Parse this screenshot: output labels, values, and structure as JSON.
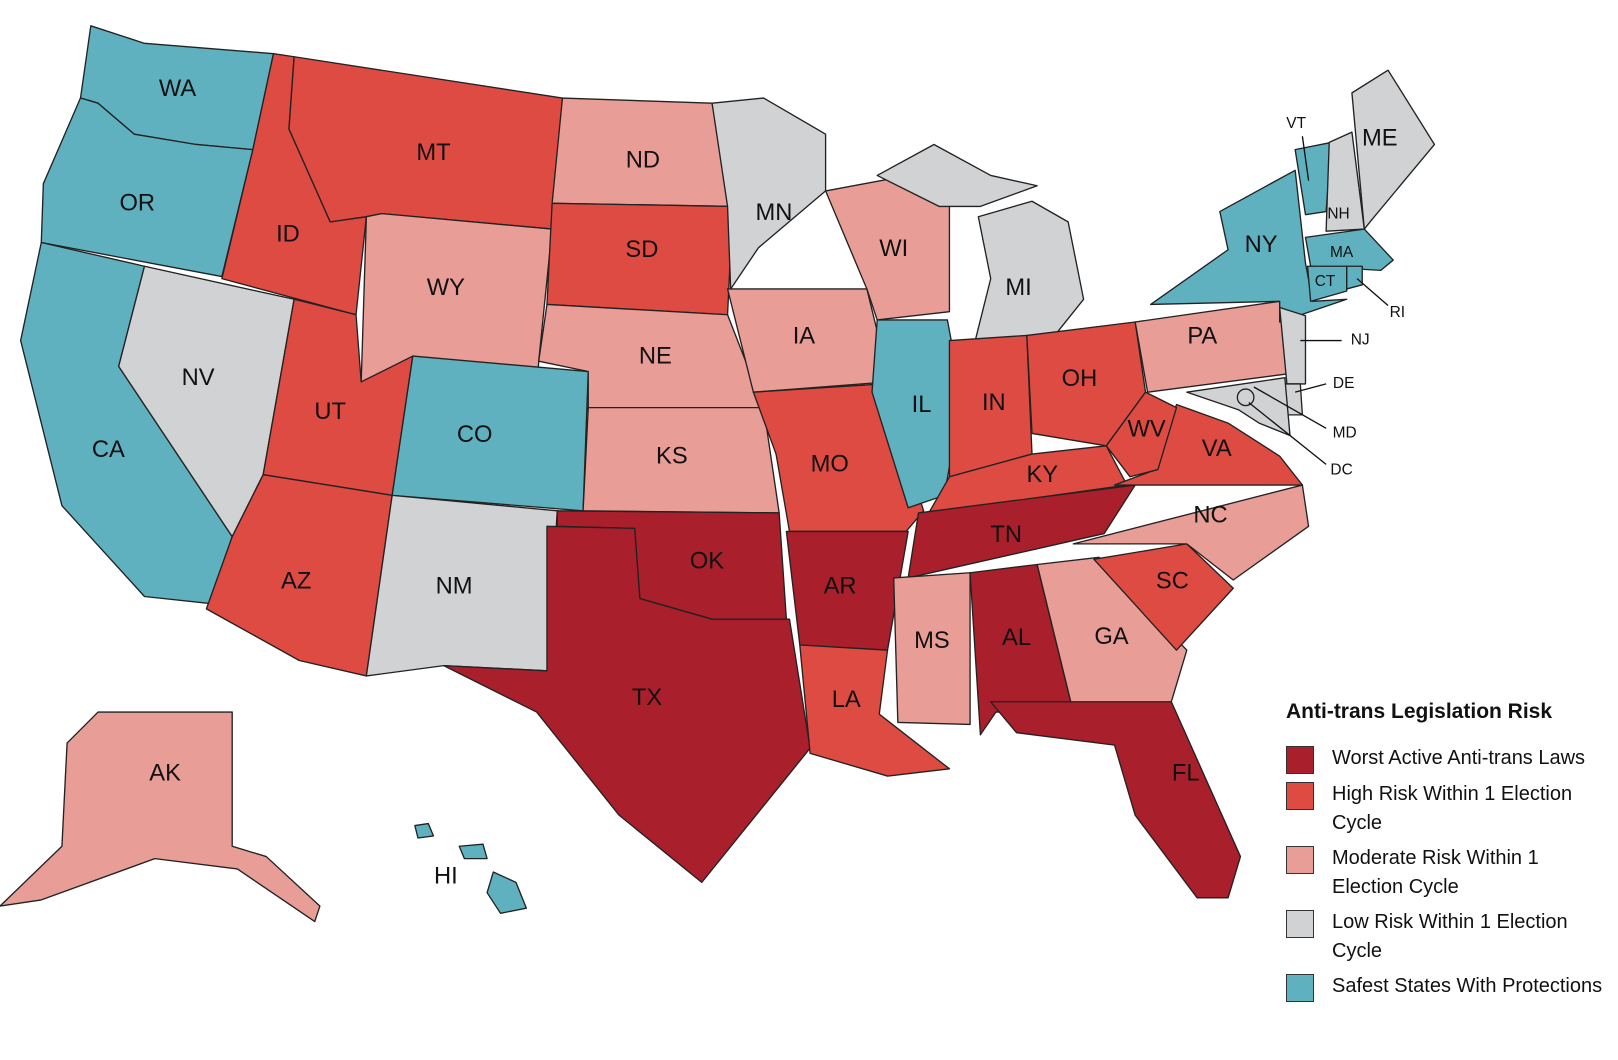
{
  "legend": {
    "title": "Anti-trans Legislation Risk",
    "items": [
      {
        "label": "Worst Active Anti-trans Laws",
        "color": "#a91f2c"
      },
      {
        "label": "High Risk Within 1 Election Cycle",
        "color": "#de4b43"
      },
      {
        "label": "Moderate Risk Within 1 Election Cycle",
        "color": "#e89d97"
      },
      {
        "label": "Low Risk Within 1 Election Cycle",
        "color": "#d1d2d4"
      },
      {
        "label": "Safest States With Protections",
        "color": "#5fb1c0"
      }
    ]
  },
  "states": [
    {
      "label": "WA",
      "risk": 4
    },
    {
      "label": "OR",
      "risk": 4
    },
    {
      "label": "CA",
      "risk": 4
    },
    {
      "label": "NV",
      "risk": 3
    },
    {
      "label": "ID",
      "risk": 1
    },
    {
      "label": "MT",
      "risk": 1
    },
    {
      "label": "WY",
      "risk": 2
    },
    {
      "label": "UT",
      "risk": 1
    },
    {
      "label": "CO",
      "risk": 4
    },
    {
      "label": "AZ",
      "risk": 1
    },
    {
      "label": "NM",
      "risk": 3
    },
    {
      "label": "ND",
      "risk": 2
    },
    {
      "label": "SD",
      "risk": 1
    },
    {
      "label": "NE",
      "risk": 2
    },
    {
      "label": "KS",
      "risk": 2
    },
    {
      "label": "OK",
      "risk": 0
    },
    {
      "label": "TX",
      "risk": 0
    },
    {
      "label": "MN",
      "risk": 3
    },
    {
      "label": "IA",
      "risk": 2
    },
    {
      "label": "MO",
      "risk": 1
    },
    {
      "label": "AR",
      "risk": 0
    },
    {
      "label": "LA",
      "risk": 1
    },
    {
      "label": "WI",
      "risk": 2
    },
    {
      "label": "IL",
      "risk": 4
    },
    {
      "label": "MI",
      "risk": 3
    },
    {
      "label": "IN",
      "risk": 1
    },
    {
      "label": "OH",
      "risk": 1
    },
    {
      "label": "KY",
      "risk": 1
    },
    {
      "label": "TN",
      "risk": 0
    },
    {
      "label": "MS",
      "risk": 2
    },
    {
      "label": "AL",
      "risk": 0
    },
    {
      "label": "GA",
      "risk": 2
    },
    {
      "label": "FL",
      "risk": 0
    },
    {
      "label": "SC",
      "risk": 1
    },
    {
      "label": "NC",
      "risk": 2
    },
    {
      "label": "VA",
      "risk": 1
    },
    {
      "label": "WV",
      "risk": 1
    },
    {
      "label": "PA",
      "risk": 2
    },
    {
      "label": "NY",
      "risk": 4
    },
    {
      "label": "VT",
      "risk": 4
    },
    {
      "label": "NH",
      "risk": 3
    },
    {
      "label": "ME",
      "risk": 3
    },
    {
      "label": "MA",
      "risk": 4
    },
    {
      "label": "CT",
      "risk": 4
    },
    {
      "label": "RI",
      "risk": 4
    },
    {
      "label": "NJ",
      "risk": 3
    },
    {
      "label": "DE",
      "risk": 3
    },
    {
      "label": "MD",
      "risk": 3
    },
    {
      "label": "DC",
      "risk": 3
    },
    {
      "label": "AK",
      "risk": 2
    },
    {
      "label": "HI",
      "risk": 4
    }
  ]
}
